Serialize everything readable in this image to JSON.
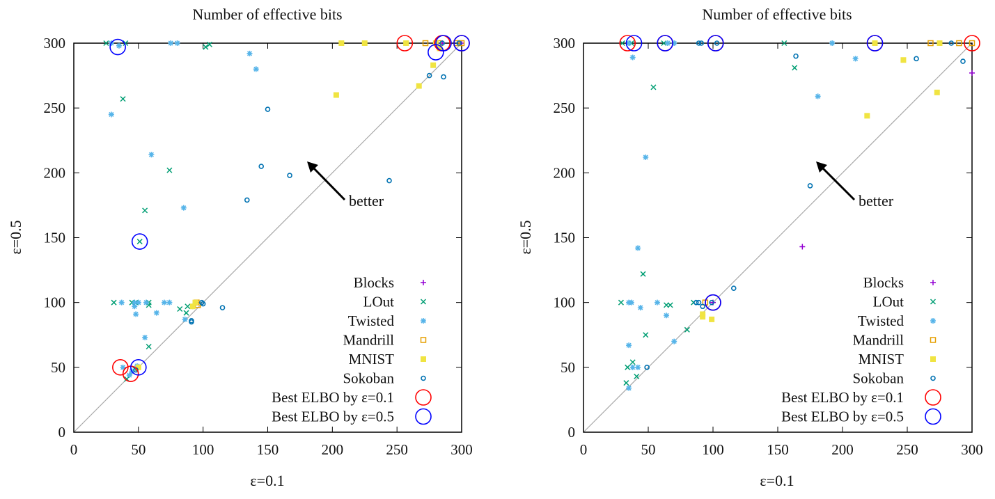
{
  "chart_data": [
    {
      "type": "scatter",
      "title": "Number of effective bits",
      "xlabel": "ε=0.1",
      "ylabel": "ε=0.5",
      "xlim": [
        0,
        300
      ],
      "ylim": [
        0,
        300
      ],
      "xticks": [
        0,
        50,
        100,
        150,
        200,
        250,
        300
      ],
      "yticks": [
        0,
        50,
        100,
        150,
        200,
        250,
        300
      ],
      "diagonal": true,
      "annotation": "better",
      "legend_position": "bottom-right",
      "series": [
        {
          "name": "Blocks",
          "marker": "plus",
          "color": "#9400d3",
          "points": [
            [
              300,
              300
            ],
            [
              285,
              300
            ]
          ]
        },
        {
          "name": "LOut",
          "marker": "cross",
          "color": "#009e73",
          "points": [
            [
              25,
              300
            ],
            [
              40,
              300
            ],
            [
              102,
              297
            ],
            [
              105,
              299
            ],
            [
              38,
              257
            ],
            [
              74,
              202
            ],
            [
              55,
              171
            ],
            [
              51,
              147
            ],
            [
              31,
              100
            ],
            [
              45,
              100
            ],
            [
              48,
              100
            ],
            [
              58,
              100
            ],
            [
              58,
              98
            ],
            [
              82,
              95
            ],
            [
              87,
              92
            ],
            [
              88,
              97
            ],
            [
              58,
              66
            ],
            [
              41,
              41
            ],
            [
              47,
              49
            ]
          ]
        },
        {
          "name": "Twisted",
          "marker": "star",
          "color": "#56b4e9",
          "points": [
            [
              29,
              300
            ],
            [
              35,
              298
            ],
            [
              75,
              300
            ],
            [
              80,
              300
            ],
            [
              136,
              292
            ],
            [
              141,
              280
            ],
            [
              29,
              245
            ],
            [
              60,
              214
            ],
            [
              85,
              173
            ],
            [
              37,
              100
            ],
            [
              47,
              100
            ],
            [
              50,
              100
            ],
            [
              56,
              100
            ],
            [
              70,
              100
            ],
            [
              74,
              100
            ],
            [
              47,
              97
            ],
            [
              48,
              91
            ],
            [
              64,
              92
            ],
            [
              86,
              87
            ],
            [
              55,
              73
            ],
            [
              92,
              97
            ],
            [
              38,
              50
            ],
            [
              45,
              47
            ],
            [
              43,
              44
            ],
            [
              49,
              51
            ]
          ]
        },
        {
          "name": "Mandrill",
          "marker": "open-square",
          "color": "#e69f00",
          "points": [
            [
              272,
              300
            ],
            [
              282,
              300
            ],
            [
              296,
              300
            ],
            [
              300,
              300
            ],
            [
              95,
              100
            ],
            [
              96,
              98
            ]
          ]
        },
        {
          "name": "MNIST",
          "marker": "filled-square",
          "color": "#f0e442",
          "points": [
            [
              207,
              300
            ],
            [
              225,
              300
            ],
            [
              257,
              300
            ],
            [
              280,
              300
            ],
            [
              203,
              260
            ],
            [
              278,
              283
            ],
            [
              267,
              267
            ],
            [
              283,
              296
            ],
            [
              94,
              100
            ],
            [
              92,
              97
            ],
            [
              50,
              50
            ]
          ]
        },
        {
          "name": "Sokoban",
          "marker": "open-circle",
          "color": "#0072b2",
          "points": [
            [
              150,
              249
            ],
            [
              145,
              205
            ],
            [
              167,
              198
            ],
            [
              244,
              194
            ],
            [
              134,
              179
            ],
            [
              275,
              275
            ],
            [
              286,
              274
            ],
            [
              115,
              96
            ],
            [
              100,
              99
            ],
            [
              99,
              100
            ],
            [
              91,
              86
            ],
            [
              91,
              85
            ],
            [
              48,
              48
            ],
            [
              285,
              300
            ],
            [
              298,
              300
            ]
          ]
        },
        {
          "name": "Best ELBO by ε=0.1",
          "marker": "big-circle",
          "color": "#ff0000",
          "points": [
            [
              36,
              50
            ],
            [
              44,
              45
            ],
            [
              256,
              300
            ],
            [
              285,
              300
            ],
            [
              300,
              300
            ]
          ]
        },
        {
          "name": "Best ELBO by ε=0.5",
          "marker": "big-circle",
          "color": "#0000ff",
          "points": [
            [
              50,
              50
            ],
            [
              51,
              147
            ],
            [
              34,
              297
            ],
            [
              280,
              293
            ],
            [
              286,
              300
            ],
            [
              300,
              300
            ]
          ]
        }
      ]
    },
    {
      "type": "scatter",
      "title": "Number of effective bits",
      "xlabel": "ε=0.1",
      "ylabel": "ε=0.5",
      "xlim": [
        0,
        300
      ],
      "ylim": [
        0,
        300
      ],
      "xticks": [
        0,
        50,
        100,
        150,
        200,
        250,
        300
      ],
      "yticks": [
        0,
        50,
        100,
        150,
        200,
        250,
        300
      ],
      "diagonal": true,
      "annotation": "better",
      "legend_position": "bottom-right",
      "series": [
        {
          "name": "Blocks",
          "marker": "plus",
          "color": "#9400d3",
          "points": [
            [
              169,
              143
            ],
            [
              300,
              277
            ],
            [
              225,
              300
            ],
            [
              100,
              100
            ]
          ]
        },
        {
          "name": "LOut",
          "marker": "cross",
          "color": "#009e73",
          "points": [
            [
              30,
              300
            ],
            [
              37,
              300
            ],
            [
              62,
              300
            ],
            [
              155,
              300
            ],
            [
              163,
              281
            ],
            [
              54,
              266
            ],
            [
              46,
              122
            ],
            [
              29,
              100
            ],
            [
              64,
              98
            ],
            [
              67,
              98
            ],
            [
              48,
              75
            ],
            [
              80,
              79
            ],
            [
              85,
              100
            ],
            [
              38,
              54
            ],
            [
              41,
              43
            ],
            [
              34,
              50
            ],
            [
              33,
              38
            ]
          ]
        },
        {
          "name": "Twisted",
          "marker": "star",
          "color": "#56b4e9",
          "points": [
            [
              35,
              300
            ],
            [
              38,
              289
            ],
            [
              65,
              300
            ],
            [
              70,
              300
            ],
            [
              192,
              300
            ],
            [
              210,
              288
            ],
            [
              181,
              259
            ],
            [
              48,
              212
            ],
            [
              42,
              142
            ],
            [
              35,
              100
            ],
            [
              37,
              100
            ],
            [
              57,
              100
            ],
            [
              44,
              96
            ],
            [
              64,
              90
            ],
            [
              70,
              70
            ],
            [
              35,
              67
            ],
            [
              42,
              50
            ],
            [
              38,
              50
            ],
            [
              35,
              34
            ]
          ]
        },
        {
          "name": "Mandrill",
          "marker": "open-square",
          "color": "#e69f00",
          "points": [
            [
              268,
              300
            ],
            [
              290,
              300
            ],
            [
              300,
              300
            ],
            [
              94,
              100
            ]
          ]
        },
        {
          "name": "MNIST",
          "marker": "filled-square",
          "color": "#f0e442",
          "points": [
            [
              225,
              300
            ],
            [
              275,
              300
            ],
            [
              247,
              287
            ],
            [
              219,
              244
            ],
            [
              273,
              262
            ],
            [
              92,
              91
            ],
            [
              92,
              89
            ],
            [
              99,
              87
            ]
          ]
        },
        {
          "name": "Sokoban",
          "marker": "open-circle",
          "color": "#0072b2",
          "points": [
            [
              89,
              300
            ],
            [
              91,
              300
            ],
            [
              103,
              300
            ],
            [
              164,
              290
            ],
            [
              257,
              288
            ],
            [
              293,
              286
            ],
            [
              175,
              190
            ],
            [
              116,
              111
            ],
            [
              89,
              100
            ],
            [
              87,
              100
            ],
            [
              99,
              100
            ],
            [
              92,
              97
            ],
            [
              49,
              50
            ],
            [
              284,
              300
            ]
          ]
        },
        {
          "name": "Best ELBO by ε=0.1",
          "marker": "big-circle",
          "color": "#ff0000",
          "points": [
            [
              34,
              300
            ],
            [
              63,
              300
            ],
            [
              102,
              300
            ],
            [
              225,
              300
            ],
            [
              300,
              300
            ],
            [
              100,
              100
            ]
          ]
        },
        {
          "name": "Best ELBO by ε=0.5",
          "marker": "big-circle",
          "color": "#0000ff",
          "points": [
            [
              39,
              300
            ],
            [
              63,
              300
            ],
            [
              102,
              300
            ],
            [
              225,
              300
            ],
            [
              100,
              100
            ]
          ]
        }
      ]
    }
  ]
}
